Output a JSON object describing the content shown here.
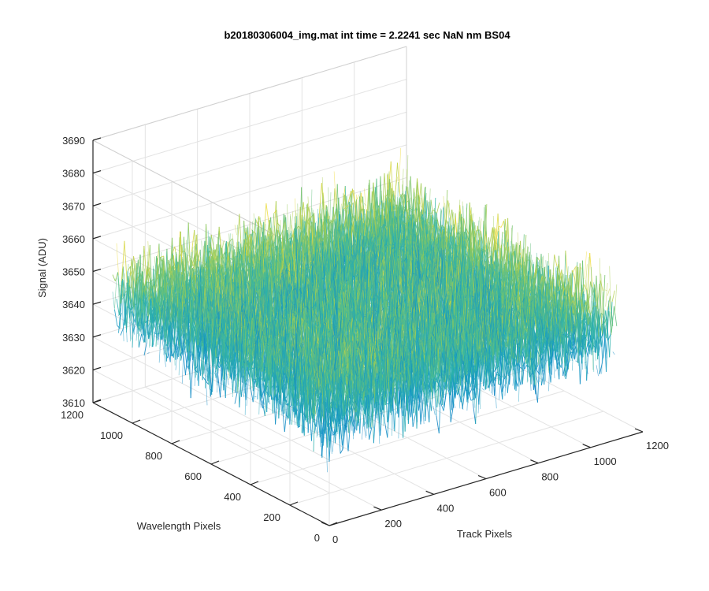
{
  "chart_data": {
    "type": "surface3d",
    "title": "b20180306004_img.mat int time = 2.2241 sec  NaN nm BS04",
    "xlabel": "Track Pixels",
    "ylabel": "Wavelength Pixels",
    "zlabel": "Signal (ADU)",
    "xlim": [
      0,
      1200
    ],
    "ylim": [
      0,
      1200
    ],
    "zlim": [
      3610,
      3690
    ],
    "xticks": [
      0,
      200,
      400,
      600,
      800,
      1000,
      1200
    ],
    "yticks": [
      0,
      200,
      400,
      600,
      800,
      1000,
      1200
    ],
    "zticks": [
      3610,
      3620,
      3630,
      3640,
      3650,
      3660,
      3670,
      3680,
      3690
    ],
    "grid": true,
    "colormap": "parula",
    "surface": {
      "x_range": [
        0,
        1100
      ],
      "y_range": [
        0,
        1100
      ],
      "mean_signal": 3645,
      "noise_min": 3615,
      "noise_max": 3690
    },
    "colors": {
      "low": "#0072BD",
      "mid": "#2FB6A8",
      "high": "#F0DC3C"
    }
  }
}
